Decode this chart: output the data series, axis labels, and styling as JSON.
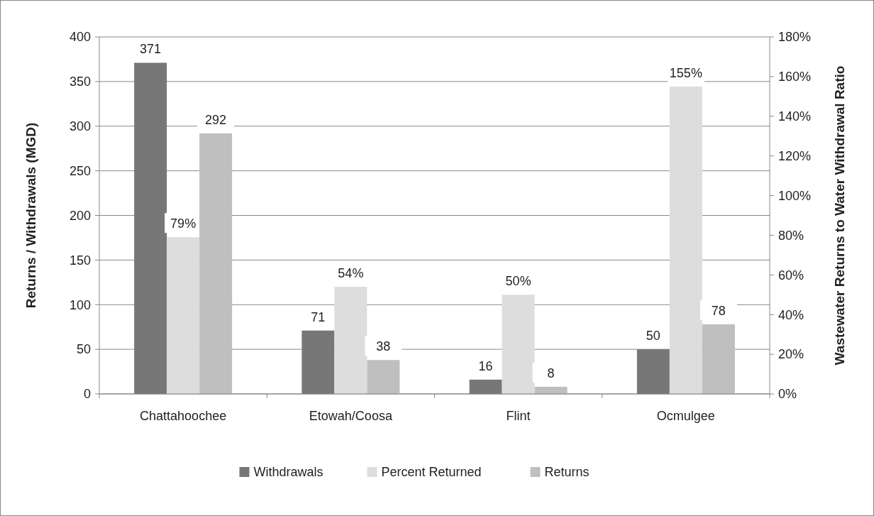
{
  "chart_data": {
    "type": "bar",
    "categories": [
      "Chattahoochee",
      "Etowah/Coosa",
      "Flint",
      "Ocmulgee"
    ],
    "ylabel": "Returns / Withdrawals (MGD)",
    "y2label": "Wastewater Returns to Water Withdrawal Ratio",
    "series": [
      {
        "name": "Withdrawals",
        "color": "#777777",
        "values": [
          371,
          71,
          16,
          50
        ],
        "value_labels": [
          "371",
          "71",
          "16",
          "50"
        ]
      },
      {
        "name": "Percent Returned",
        "color": "#dddddd",
        "axis": "y2",
        "values": [
          79,
          54,
          50,
          155
        ],
        "value_labels": [
          "79%",
          "54%",
          "50%",
          "155%"
        ]
      },
      {
        "name": "Returns",
        "color": "#bfbfbf",
        "values": [
          292,
          38,
          8,
          78
        ],
        "value_labels": [
          "292",
          "38",
          "8",
          "78"
        ]
      }
    ],
    "ylim": [
      0,
      400
    ],
    "yticks": [
      0,
      50,
      100,
      150,
      200,
      250,
      300,
      350,
      400
    ],
    "y2lim": [
      0,
      180
    ],
    "y2ticks": [
      {
        "value": 0,
        "label": "0%"
      },
      {
        "value": 20,
        "label": "20%"
      },
      {
        "value": 40,
        "label": "40%"
      },
      {
        "value": 60,
        "label": "60%"
      },
      {
        "value": 80,
        "label": "80%"
      },
      {
        "value": 100,
        "label": "100%"
      },
      {
        "value": 120,
        "label": "120%"
      },
      {
        "value": 140,
        "label": "140%"
      },
      {
        "value": 160,
        "label": "160%"
      },
      {
        "value": 180,
        "label": "180%"
      }
    ],
    "grid": "y",
    "legend": "bottom"
  }
}
